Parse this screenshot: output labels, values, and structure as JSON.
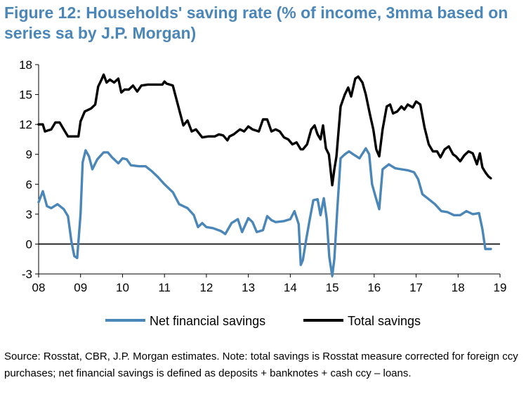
{
  "title": "Figure 12: Households' saving rate (% of income, 3mma based on series sa by J.P. Morgan)",
  "source": "Source: Rosstat, CBR, J.P. Morgan estimates. Note: total savings is Rosstat measure corrected for foreign ccy purchases; net financial savings is defined as deposits + banknotes + cash ccy – loans.",
  "colors": {
    "net": "#4a86b8",
    "total": "#000000",
    "zero_line": "#000000"
  },
  "chart_data": {
    "type": "line",
    "title": "Figure 12: Households' saving rate (% of income, 3mma based on series sa by J.P. Morgan)",
    "xlabel": "",
    "ylabel": "",
    "xlim": [
      8,
      19
    ],
    "ylim": [
      -3,
      18
    ],
    "x_tick_labels": [
      "08",
      "09",
      "10",
      "11",
      "12",
      "13",
      "14",
      "15",
      "16",
      "17",
      "18",
      "19"
    ],
    "y_tick_labels": [
      "18",
      "15",
      "12",
      "9",
      "6",
      "3",
      "0",
      "-3"
    ],
    "y_ticks": [
      18,
      15,
      12,
      9,
      6,
      3,
      0,
      -3
    ],
    "legend_position": "bottom",
    "grid": false,
    "series": [
      {
        "name": "Net financial savings",
        "color": "#4a86b8",
        "points": [
          [
            8.0,
            4.2
          ],
          [
            8.1,
            5.3
          ],
          [
            8.2,
            3.8
          ],
          [
            8.3,
            3.6
          ],
          [
            8.45,
            4.0
          ],
          [
            8.6,
            3.5
          ],
          [
            8.7,
            2.8
          ],
          [
            8.78,
            0.3
          ],
          [
            8.85,
            -1.2
          ],
          [
            8.92,
            -1.4
          ],
          [
            9.0,
            3.0
          ],
          [
            9.05,
            8.2
          ],
          [
            9.12,
            9.4
          ],
          [
            9.2,
            8.8
          ],
          [
            9.28,
            7.5
          ],
          [
            9.4,
            8.5
          ],
          [
            9.55,
            9.2
          ],
          [
            9.65,
            9.2
          ],
          [
            9.75,
            8.7
          ],
          [
            9.9,
            8.1
          ],
          [
            10.0,
            8.6
          ],
          [
            10.1,
            8.5
          ],
          [
            10.2,
            7.9
          ],
          [
            10.4,
            7.8
          ],
          [
            10.55,
            7.8
          ],
          [
            10.7,
            7.3
          ],
          [
            10.85,
            6.7
          ],
          [
            11.0,
            6.0
          ],
          [
            11.2,
            5.2
          ],
          [
            11.35,
            4.0
          ],
          [
            11.55,
            3.6
          ],
          [
            11.7,
            2.9
          ],
          [
            11.8,
            1.7
          ],
          [
            11.9,
            2.1
          ],
          [
            12.0,
            1.7
          ],
          [
            12.15,
            1.6
          ],
          [
            12.35,
            1.3
          ],
          [
            12.45,
            1.0
          ],
          [
            12.6,
            2.1
          ],
          [
            12.75,
            2.5
          ],
          [
            12.85,
            1.2
          ],
          [
            13.0,
            2.6
          ],
          [
            13.1,
            2.2
          ],
          [
            13.2,
            1.2
          ],
          [
            13.35,
            1.4
          ],
          [
            13.45,
            2.8
          ],
          [
            13.55,
            2.4
          ],
          [
            13.65,
            2.2
          ],
          [
            13.85,
            2.3
          ],
          [
            14.0,
            2.5
          ],
          [
            14.1,
            3.3
          ],
          [
            14.2,
            2.0
          ],
          [
            14.25,
            -2.1
          ],
          [
            14.3,
            -1.6
          ],
          [
            14.38,
            0.5
          ],
          [
            14.47,
            2.6
          ],
          [
            14.55,
            4.4
          ],
          [
            14.65,
            4.5
          ],
          [
            14.72,
            2.9
          ],
          [
            14.8,
            4.6
          ],
          [
            14.87,
            2.5
          ],
          [
            14.93,
            -1.3
          ],
          [
            15.0,
            -3.2
          ],
          [
            15.05,
            -1.5
          ],
          [
            15.12,
            3.5
          ],
          [
            15.2,
            8.6
          ],
          [
            15.3,
            9.0
          ],
          [
            15.4,
            9.3
          ],
          [
            15.5,
            9.0
          ],
          [
            15.65,
            8.6
          ],
          [
            15.8,
            9.6
          ],
          [
            15.88,
            9.0
          ],
          [
            15.95,
            6.0
          ],
          [
            16.05,
            4.5
          ],
          [
            16.12,
            3.5
          ],
          [
            16.2,
            7.5
          ],
          [
            16.35,
            8.0
          ],
          [
            16.5,
            7.6
          ],
          [
            16.65,
            7.5
          ],
          [
            16.8,
            7.4
          ],
          [
            16.95,
            7.2
          ],
          [
            17.05,
            6.5
          ],
          [
            17.15,
            5.0
          ],
          [
            17.3,
            4.5
          ],
          [
            17.45,
            4.0
          ],
          [
            17.6,
            3.3
          ],
          [
            17.75,
            3.2
          ],
          [
            17.9,
            2.9
          ],
          [
            18.05,
            2.9
          ],
          [
            18.2,
            3.3
          ],
          [
            18.35,
            3.0
          ],
          [
            18.5,
            3.1
          ],
          [
            18.58,
            1.5
          ],
          [
            18.65,
            -0.5
          ],
          [
            18.78,
            -0.5
          ]
        ]
      },
      {
        "name": "Total savings",
        "color": "#000000",
        "points": [
          [
            8.0,
            12.0
          ],
          [
            8.1,
            12.0
          ],
          [
            8.15,
            11.3
          ],
          [
            8.3,
            11.5
          ],
          [
            8.4,
            12.2
          ],
          [
            8.5,
            12.2
          ],
          [
            8.6,
            11.5
          ],
          [
            8.7,
            10.8
          ],
          [
            8.85,
            10.8
          ],
          [
            8.95,
            10.8
          ],
          [
            9.0,
            12.3
          ],
          [
            9.1,
            13.3
          ],
          [
            9.25,
            13.6
          ],
          [
            9.35,
            14.0
          ],
          [
            9.42,
            15.8
          ],
          [
            9.5,
            16.5
          ],
          [
            9.55,
            17.0
          ],
          [
            9.62,
            16.2
          ],
          [
            9.7,
            16.5
          ],
          [
            9.8,
            16.2
          ],
          [
            9.9,
            16.6
          ],
          [
            9.97,
            15.2
          ],
          [
            10.05,
            15.5
          ],
          [
            10.15,
            15.5
          ],
          [
            10.25,
            15.9
          ],
          [
            10.35,
            15.3
          ],
          [
            10.45,
            15.9
          ],
          [
            10.6,
            16.0
          ],
          [
            10.7,
            16.0
          ],
          [
            10.85,
            16.0
          ],
          [
            10.95,
            16.0
          ],
          [
            11.0,
            16.3
          ],
          [
            11.05,
            16.1
          ],
          [
            11.2,
            15.9
          ],
          [
            11.35,
            13.5
          ],
          [
            11.45,
            11.9
          ],
          [
            11.55,
            12.4
          ],
          [
            11.65,
            11.3
          ],
          [
            11.75,
            11.5
          ],
          [
            11.9,
            10.7
          ],
          [
            12.05,
            10.8
          ],
          [
            12.2,
            10.8
          ],
          [
            12.3,
            11.0
          ],
          [
            12.4,
            10.9
          ],
          [
            12.5,
            10.4
          ],
          [
            12.55,
            10.8
          ],
          [
            12.65,
            11.0
          ],
          [
            12.8,
            11.5
          ],
          [
            12.9,
            11.3
          ],
          [
            13.0,
            11.8
          ],
          [
            13.1,
            11.5
          ],
          [
            13.25,
            11.3
          ],
          [
            13.35,
            12.5
          ],
          [
            13.45,
            12.5
          ],
          [
            13.55,
            11.3
          ],
          [
            13.65,
            11.5
          ],
          [
            13.75,
            11.3
          ],
          [
            13.85,
            10.7
          ],
          [
            13.95,
            10.5
          ],
          [
            14.05,
            10.0
          ],
          [
            14.15,
            10.2
          ],
          [
            14.25,
            9.5
          ],
          [
            14.3,
            9.5
          ],
          [
            14.4,
            10.0
          ],
          [
            14.5,
            11.5
          ],
          [
            14.58,
            11.9
          ],
          [
            14.65,
            11.0
          ],
          [
            14.72,
            10.5
          ],
          [
            14.78,
            11.9
          ],
          [
            14.85,
            9.6
          ],
          [
            14.92,
            9.0
          ],
          [
            15.0,
            5.9
          ],
          [
            15.05,
            7.5
          ],
          [
            15.1,
            8.8
          ],
          [
            15.2,
            13.8
          ],
          [
            15.3,
            15.0
          ],
          [
            15.38,
            15.7
          ],
          [
            15.45,
            14.8
          ],
          [
            15.55,
            16.6
          ],
          [
            15.62,
            16.8
          ],
          [
            15.72,
            16.2
          ],
          [
            15.8,
            15.0
          ],
          [
            15.9,
            13.0
          ],
          [
            15.98,
            11.5
          ],
          [
            16.05,
            9.5
          ],
          [
            16.12,
            8.8
          ],
          [
            16.2,
            11.5
          ],
          [
            16.3,
            13.8
          ],
          [
            16.38,
            14.0
          ],
          [
            16.45,
            13.1
          ],
          [
            16.55,
            13.3
          ],
          [
            16.65,
            13.8
          ],
          [
            16.72,
            13.5
          ],
          [
            16.8,
            14.0
          ],
          [
            16.92,
            13.7
          ],
          [
            17.0,
            14.3
          ],
          [
            17.1,
            14.0
          ],
          [
            17.2,
            11.7
          ],
          [
            17.3,
            10.0
          ],
          [
            17.4,
            9.3
          ],
          [
            17.5,
            9.3
          ],
          [
            17.58,
            8.7
          ],
          [
            17.68,
            9.5
          ],
          [
            17.78,
            9.8
          ],
          [
            17.88,
            9.0
          ],
          [
            17.95,
            8.8
          ],
          [
            18.05,
            8.3
          ],
          [
            18.15,
            8.9
          ],
          [
            18.25,
            9.3
          ],
          [
            18.35,
            9.1
          ],
          [
            18.45,
            8.0
          ],
          [
            18.52,
            9.1
          ],
          [
            18.58,
            7.7
          ],
          [
            18.65,
            7.2
          ],
          [
            18.72,
            6.8
          ],
          [
            18.78,
            6.6
          ]
        ]
      }
    ]
  }
}
